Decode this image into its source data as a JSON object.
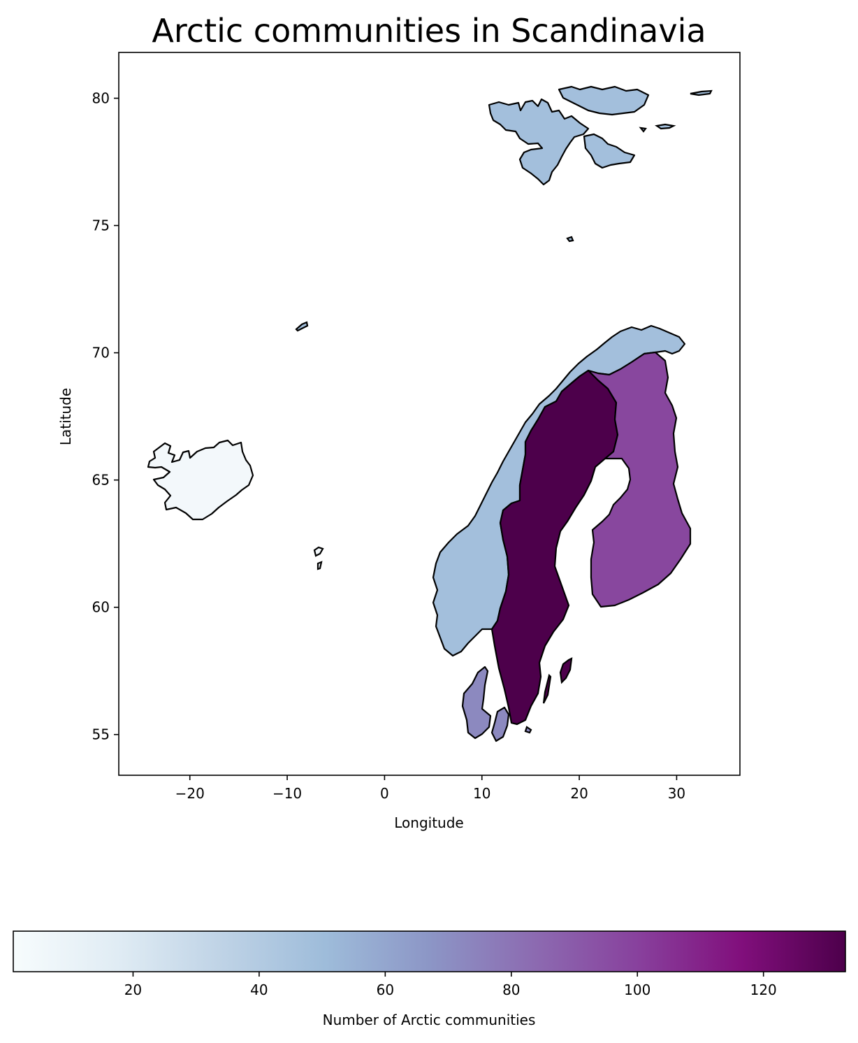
{
  "title": "Arctic communities in Scandinavia",
  "map": {
    "xlabel": "Longitude",
    "ylabel": "Latitude",
    "xlim": [
      -27.3,
      36.5
    ],
    "ylim": [
      53.4,
      81.8
    ],
    "xticks": [
      -20,
      -10,
      0,
      10,
      20,
      30
    ],
    "yticks": [
      55,
      60,
      65,
      70,
      75,
      80
    ],
    "xtick_labels": [
      "−20",
      "−10",
      "0",
      "10",
      "20",
      "30"
    ],
    "ytick_labels": [
      "55",
      "60",
      "65",
      "70",
      "75",
      "80"
    ]
  },
  "chart_data": {
    "type": "choropleth",
    "value_name": "Number of Arctic communities",
    "regions": [
      {
        "name": "Iceland",
        "value": 1
      },
      {
        "name": "Norway",
        "value": 46
      },
      {
        "name": "Denmark",
        "value": 68
      },
      {
        "name": "Finland",
        "value": 100
      },
      {
        "name": "Sweden",
        "value": 133
      }
    ],
    "colormap": "BuPu",
    "vmin": 1,
    "vmax": 133
  },
  "colorbar": {
    "label": "Number of Arctic communities",
    "ticks": [
      20,
      40,
      60,
      80,
      100,
      120
    ],
    "tick_labels": [
      "20",
      "40",
      "60",
      "80",
      "100",
      "120"
    ],
    "stops": [
      "#f7fcfd",
      "#e0ecf4",
      "#bfd3e6",
      "#9ebcda",
      "#8c96c6",
      "#8c6bb1",
      "#88419d",
      "#810f7c",
      "#4d004b"
    ]
  }
}
